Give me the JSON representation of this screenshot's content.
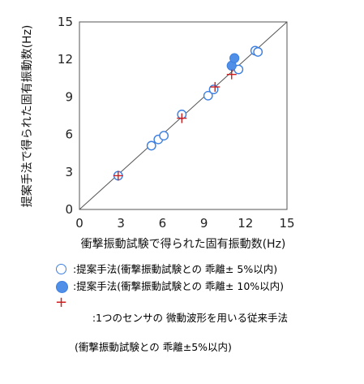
{
  "chart_data": {
    "type": "scatter",
    "xlabel": "衝撃振動試験で得られた固有振動数(Hz)",
    "ylabel": "提案手法で得られた固有振動数(Hz)",
    "xlim": [
      0,
      15
    ],
    "ylim": [
      0,
      15
    ],
    "xticks": [
      "0",
      "3",
      "6",
      "9",
      "12",
      "15"
    ],
    "yticks": [
      "0",
      "3",
      "6",
      "9",
      "12",
      "15"
    ],
    "reference_line": "y = x",
    "grid": false,
    "series": [
      {
        "name": ":提案手法(衝撃振動試験との 乖離± 5%以内)",
        "marker": "open-circle",
        "color": "#3d7fe0",
        "points": [
          [
            2.8,
            2.7
          ],
          [
            5.2,
            5.1
          ],
          [
            5.7,
            5.6
          ],
          [
            6.1,
            5.9
          ],
          [
            7.4,
            7.6
          ],
          [
            9.3,
            9.1
          ],
          [
            9.7,
            9.6
          ],
          [
            11.5,
            11.2
          ],
          [
            12.7,
            12.7
          ],
          [
            12.9,
            12.6
          ]
        ]
      },
      {
        "name": ":提案手法(衝撃振動試験との 乖離± 10%以内)",
        "marker": "filled-circle",
        "color": "#4f8fe8",
        "points": [
          [
            11.0,
            11.5
          ],
          [
            11.2,
            12.1
          ]
        ]
      },
      {
        "name": ":1つのセンサの 微動波形を用いる従来手法",
        "name_line2": "(衝撃振動試験との 乖離±5%以内)",
        "marker": "plus",
        "color": "#cc1e1e",
        "points": [
          [
            2.8,
            2.7
          ],
          [
            7.4,
            7.3
          ],
          [
            9.8,
            9.8
          ],
          [
            11.0,
            10.8
          ]
        ]
      }
    ]
  }
}
